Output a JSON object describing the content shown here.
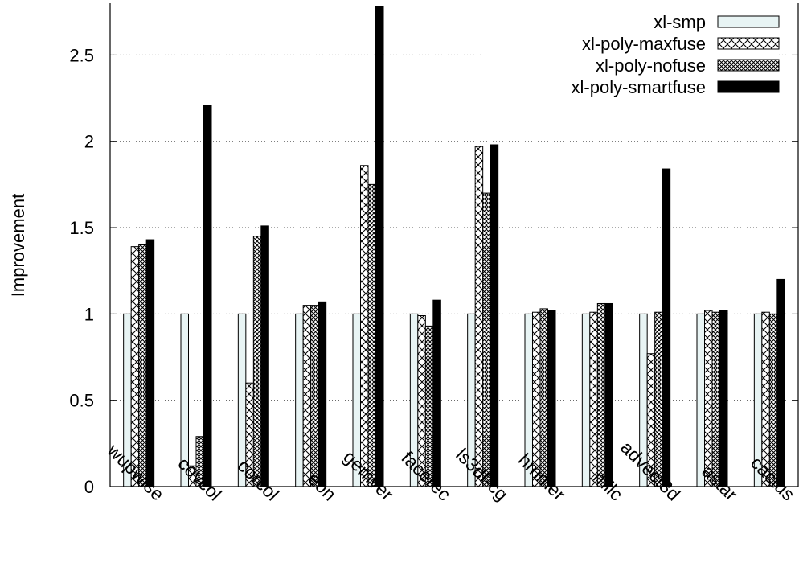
{
  "chart_data": {
    "type": "bar",
    "title": "",
    "xlabel": "",
    "ylabel": "Improvement",
    "ylim": [
      0,
      2.8
    ],
    "yticks": [
      0,
      0.5,
      1,
      1.5,
      2,
      2.5
    ],
    "ytick_labels": [
      "0",
      "0.5",
      "1",
      "1.5",
      "2",
      "2.5"
    ],
    "grid": "horizontal-dotted",
    "legend_position": "top-right",
    "categories": [
      "wupwise",
      "covcol",
      "corcol",
      "eon",
      "gemver",
      "facerec",
      "ls3df-cg",
      "hmmer",
      "milc",
      "advect3d",
      "astar",
      "cactus"
    ],
    "series": [
      {
        "name": "xl-smp",
        "pattern": "light-fill",
        "color": "#e8f4f4",
        "values": [
          1.0,
          1.0,
          1.0,
          1.0,
          1.0,
          1.0,
          1.0,
          1.0,
          1.0,
          1.0,
          1.0,
          1.0
        ]
      },
      {
        "name": "xl-poly-maxfuse",
        "pattern": "crosshatch-sparse",
        "color": "#000000",
        "values": [
          1.39,
          0.12,
          0.6,
          1.05,
          1.86,
          0.99,
          1.97,
          1.01,
          1.01,
          0.77,
          1.02,
          1.01
        ]
      },
      {
        "name": "xl-poly-nofuse",
        "pattern": "crosshatch-dense",
        "color": "#000000",
        "values": [
          1.4,
          0.29,
          1.45,
          1.05,
          1.75,
          0.93,
          1.7,
          1.03,
          1.06,
          1.01,
          1.01,
          1.0
        ]
      },
      {
        "name": "xl-poly-smartfuse",
        "pattern": "solid",
        "color": "#000000",
        "values": [
          1.43,
          2.21,
          1.51,
          1.07,
          2.78,
          1.08,
          1.98,
          1.02,
          1.06,
          1.84,
          1.02,
          1.2
        ]
      }
    ]
  }
}
